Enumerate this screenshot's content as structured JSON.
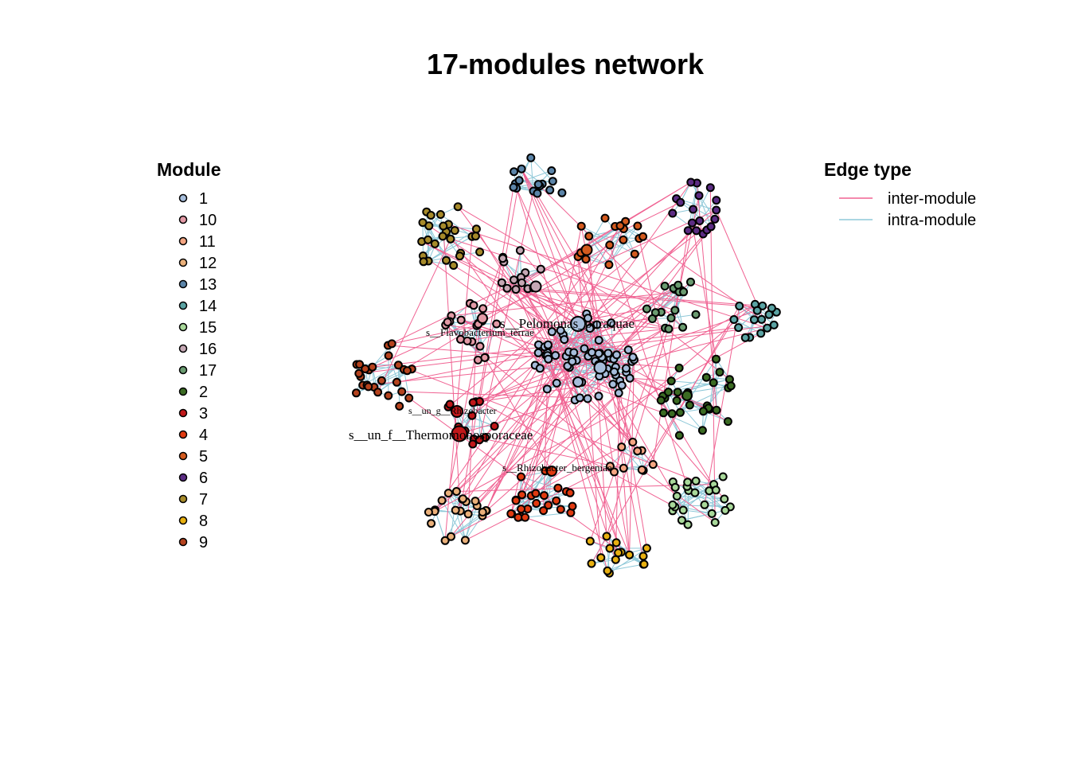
{
  "chart_data": {
    "type": "network",
    "title": "17-modules network",
    "module_legend": {
      "title": "Module",
      "entries": [
        {
          "label": "1",
          "color": "#a6bddb"
        },
        {
          "label": "10",
          "color": "#e39aa6"
        },
        {
          "label": "11",
          "color": "#f4a582"
        },
        {
          "label": "12",
          "color": "#eab07a"
        },
        {
          "label": "13",
          "color": "#5b84a8"
        },
        {
          "label": "14",
          "color": "#5aa3a3"
        },
        {
          "label": "15",
          "color": "#a8d89a"
        },
        {
          "label": "16",
          "color": "#c5a8b4"
        },
        {
          "label": "17",
          "color": "#6a9b70"
        },
        {
          "label": "2",
          "color": "#3b6b23"
        },
        {
          "label": "3",
          "color": "#c0181a"
        },
        {
          "label": "4",
          "color": "#e03a10"
        },
        {
          "label": "5",
          "color": "#d35a1e"
        },
        {
          "label": "6",
          "color": "#5b2c83"
        },
        {
          "label": "7",
          "color": "#a68a2a"
        },
        {
          "label": "8",
          "color": "#e8b010"
        },
        {
          "label": "9",
          "color": "#b5431e"
        }
      ]
    },
    "edge_legend": {
      "title": "Edge type",
      "entries": [
        {
          "label": "inter-module",
          "color": "#f06292"
        },
        {
          "label": "intra-module",
          "color": "#8ec8d8"
        }
      ]
    },
    "node_labels": [
      {
        "text": "s__Pelomonas_puraquae",
        "module": "1"
      },
      {
        "text": "s__Flavobacterium_terrae",
        "module": "10"
      },
      {
        "text": "s__un_g__Rhizobacter",
        "module": "3"
      },
      {
        "text": "s__un_f__Thermomonosporaceae",
        "module": "3"
      },
      {
        "text": "s__Rhizobacter_bergeniae",
        "module": "4"
      }
    ]
  }
}
